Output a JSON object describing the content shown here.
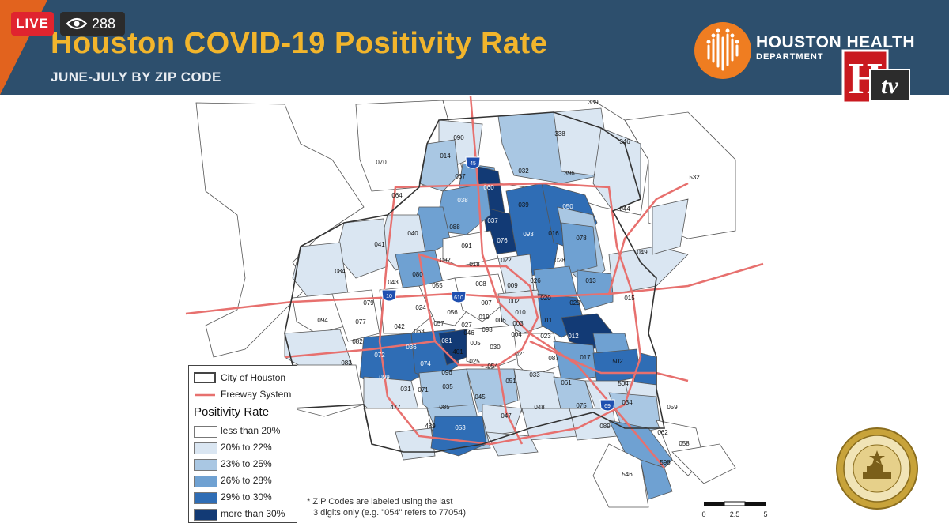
{
  "header": {
    "title": "Houston COVID-19 Positivity Rate",
    "subtitle": "JUNE-JULY BY ZIP CODE",
    "org_name": "HOUSTON HEALTH",
    "org_dept": "DEPARTMENT"
  },
  "stream": {
    "live_label": "LIVE",
    "viewer_count": "288",
    "channel_logo_h": "H",
    "channel_logo_tv": "tv"
  },
  "legend": {
    "city_label": "City of Houston",
    "freeway_label": "Freeway System",
    "rate_heading": "Positivity Rate",
    "classes": [
      {
        "label": "less than 20%",
        "color": "#ffffff"
      },
      {
        "label": "20% to 22%",
        "color": "#dae6f2"
      },
      {
        "label": "23% to 25%",
        "color": "#a9c7e3"
      },
      {
        "label": "26% to 28%",
        "color": "#6fa1d2"
      },
      {
        "label": "29% to 30%",
        "color": "#2f6db5"
      },
      {
        "label": "more than 30%",
        "color": "#123a75"
      }
    ]
  },
  "note": {
    "line1": "* ZIP Codes are labeled using the last",
    "line2": "3 digits only (e.g. \"054\" refers to 77054)"
  },
  "scale": {
    "ticks": [
      "0",
      "2.5",
      "5"
    ]
  },
  "highways": [
    "45",
    "610",
    "10",
    "69"
  ],
  "zip_labels": [
    {
      "code": "339",
      "rate_class": 0
    },
    {
      "code": "338",
      "rate_class": 0
    },
    {
      "code": "346",
      "rate_class": 0
    },
    {
      "code": "532",
      "rate_class": 0
    },
    {
      "code": "090",
      "rate_class": 1
    },
    {
      "code": "014",
      "rate_class": 2
    },
    {
      "code": "070",
      "rate_class": 0
    },
    {
      "code": "067",
      "rate_class": 3
    },
    {
      "code": "060",
      "rate_class": 5
    },
    {
      "code": "032",
      "rate_class": 1
    },
    {
      "code": "396",
      "rate_class": 1
    },
    {
      "code": "044",
      "rate_class": 1
    },
    {
      "code": "064",
      "rate_class": 0
    },
    {
      "code": "038",
      "rate_class": 4
    },
    {
      "code": "037",
      "rate_class": 5
    },
    {
      "code": "039",
      "rate_class": 3
    },
    {
      "code": "050",
      "rate_class": 4
    },
    {
      "code": "040",
      "rate_class": 1
    },
    {
      "code": "088",
      "rate_class": 2
    },
    {
      "code": "076",
      "rate_class": 4
    },
    {
      "code": "093",
      "rate_class": 4
    },
    {
      "code": "016",
      "rate_class": 3
    },
    {
      "code": "078",
      "rate_class": 2
    },
    {
      "code": "049",
      "rate_class": 1
    },
    {
      "code": "041",
      "rate_class": 1
    },
    {
      "code": "091",
      "rate_class": 0
    },
    {
      "code": "092",
      "rate_class": 0
    },
    {
      "code": "018",
      "rate_class": 0
    },
    {
      "code": "022",
      "rate_class": 1
    },
    {
      "code": "028",
      "rate_class": 3
    },
    {
      "code": "084",
      "rate_class": 1
    },
    {
      "code": "080",
      "rate_class": 3
    },
    {
      "code": "043",
      "rate_class": 1
    },
    {
      "code": "055",
      "rate_class": 1
    },
    {
      "code": "008",
      "rate_class": 0
    },
    {
      "code": "009",
      "rate_class": 0
    },
    {
      "code": "026",
      "rate_class": 2
    },
    {
      "code": "013",
      "rate_class": 3
    },
    {
      "code": "079",
      "rate_class": 0
    },
    {
      "code": "024",
      "rate_class": 0
    },
    {
      "code": "007",
      "rate_class": 0
    },
    {
      "code": "002",
      "rate_class": 0
    },
    {
      "code": "020",
      "rate_class": 3
    },
    {
      "code": "029",
      "rate_class": 3
    },
    {
      "code": "015",
      "rate_class": 1
    },
    {
      "code": "094",
      "rate_class": 0
    },
    {
      "code": "077",
      "rate_class": 0
    },
    {
      "code": "042",
      "rate_class": 1
    },
    {
      "code": "057",
      "rate_class": 0
    },
    {
      "code": "056",
      "rate_class": 0
    },
    {
      "code": "019",
      "rate_class": 0
    },
    {
      "code": "006",
      "rate_class": 0
    },
    {
      "code": "010",
      "rate_class": 0
    },
    {
      "code": "003",
      "rate_class": 0
    },
    {
      "code": "011",
      "rate_class": 3
    },
    {
      "code": "063",
      "rate_class": 1
    },
    {
      "code": "027",
      "rate_class": 0
    },
    {
      "code": "098",
      "rate_class": 0
    },
    {
      "code": "046",
      "rate_class": 0
    },
    {
      "code": "004",
      "rate_class": 0
    },
    {
      "code": "023",
      "rate_class": 3
    },
    {
      "code": "012",
      "rate_class": 5
    },
    {
      "code": "082",
      "rate_class": 1
    },
    {
      "code": "036",
      "rate_class": 4
    },
    {
      "code": "081",
      "rate_class": 4
    },
    {
      "code": "005",
      "rate_class": 0
    },
    {
      "code": "030",
      "rate_class": 0
    },
    {
      "code": "401",
      "rate_class": 0
    },
    {
      "code": "083",
      "rate_class": 1
    },
    {
      "code": "072",
      "rate_class": 4
    },
    {
      "code": "074",
      "rate_class": 4
    },
    {
      "code": "025",
      "rate_class": 0
    },
    {
      "code": "054",
      "rate_class": 0
    },
    {
      "code": "021",
      "rate_class": 0
    },
    {
      "code": "087",
      "rate_class": 3
    },
    {
      "code": "017",
      "rate_class": 3
    },
    {
      "code": "502",
      "rate_class": 3
    },
    {
      "code": "096",
      "rate_class": 0
    },
    {
      "code": "099",
      "rate_class": 4
    },
    {
      "code": "031",
      "rate_class": 2
    },
    {
      "code": "071",
      "rate_class": 1
    },
    {
      "code": "035",
      "rate_class": 2
    },
    {
      "code": "045",
      "rate_class": 2
    },
    {
      "code": "051",
      "rate_class": 1
    },
    {
      "code": "033",
      "rate_class": 2
    },
    {
      "code": "061",
      "rate_class": 1
    },
    {
      "code": "504",
      "rate_class": 1
    },
    {
      "code": "477",
      "rate_class": 0
    },
    {
      "code": "085",
      "rate_class": 2
    },
    {
      "code": "048",
      "rate_class": 1
    },
    {
      "code": "075",
      "rate_class": 1
    },
    {
      "code": "034",
      "rate_class": 3
    },
    {
      "code": "059",
      "rate_class": 0
    },
    {
      "code": "489",
      "rate_class": 1
    },
    {
      "code": "053",
      "rate_class": 4
    },
    {
      "code": "047",
      "rate_class": 1
    },
    {
      "code": "089",
      "rate_class": 1
    },
    {
      "code": "062",
      "rate_class": 0
    },
    {
      "code": "058",
      "rate_class": 0
    },
    {
      "code": "598",
      "rate_class": 3
    },
    {
      "code": "546",
      "rate_class": 0
    }
  ]
}
